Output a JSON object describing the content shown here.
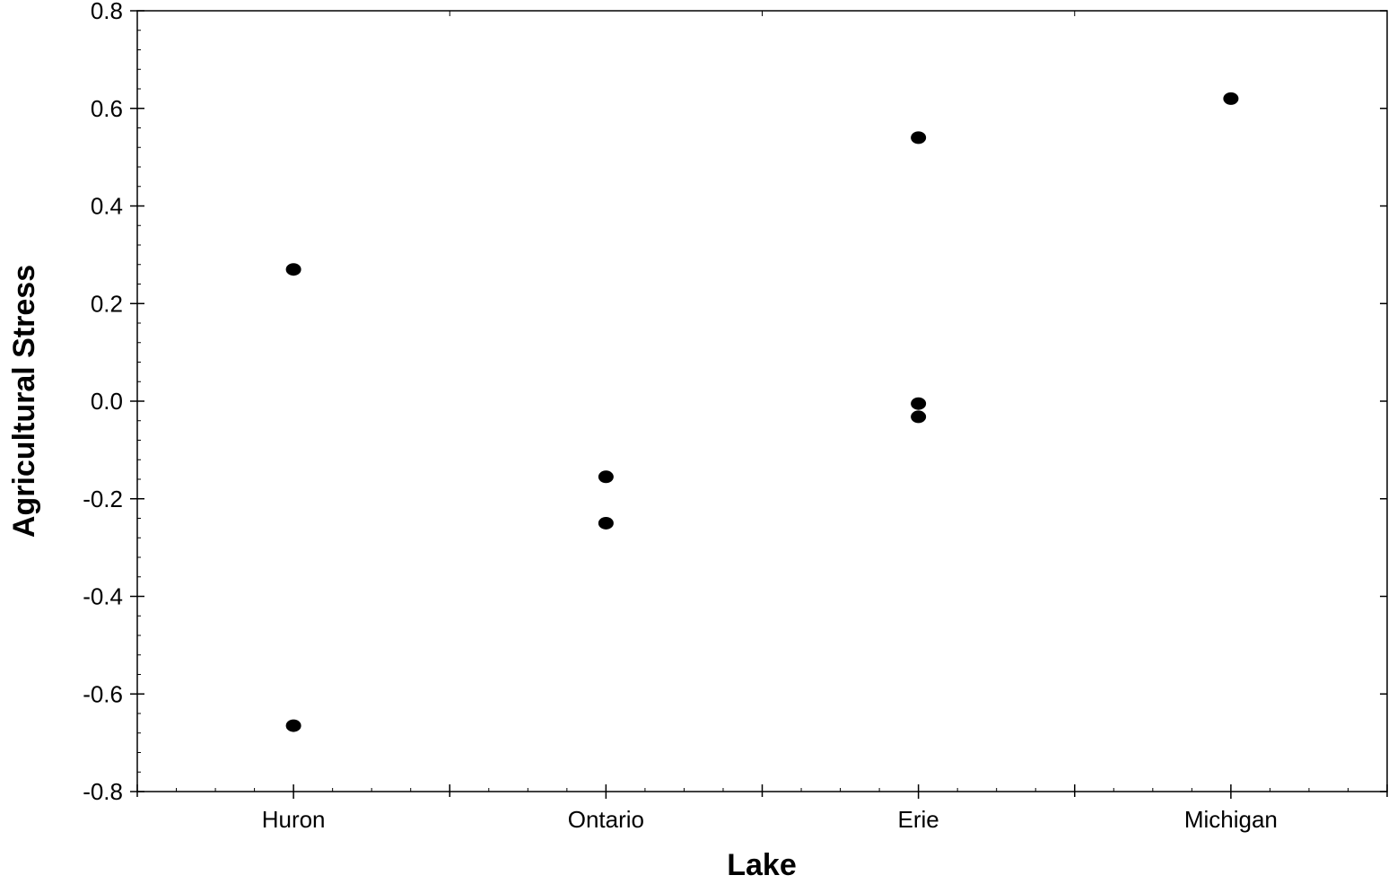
{
  "chart_data": {
    "type": "scatter",
    "title": "",
    "xlabel": "Lake",
    "ylabel": "Agricultural Stress",
    "categories": [
      "Huron",
      "Ontario",
      "Erie",
      "Michigan"
    ],
    "ylim": [
      -0.8,
      0.8
    ],
    "yticks": [
      "-0.8",
      "-0.6",
      "-0.4",
      "-0.2",
      "0.0",
      "0.2",
      "0.4",
      "0.6",
      "0.8"
    ],
    "grid": false,
    "legend": "none",
    "marker_color": "#000000",
    "points": [
      {
        "category": "Huron",
        "y": 0.27
      },
      {
        "category": "Huron",
        "y": -0.665
      },
      {
        "category": "Ontario",
        "y": -0.155
      },
      {
        "category": "Ontario",
        "y": -0.25
      },
      {
        "category": "Erie",
        "y": 0.54
      },
      {
        "category": "Erie",
        "y": -0.005
      },
      {
        "category": "Erie",
        "y": -0.032
      },
      {
        "category": "Michigan",
        "y": 0.62
      }
    ]
  }
}
